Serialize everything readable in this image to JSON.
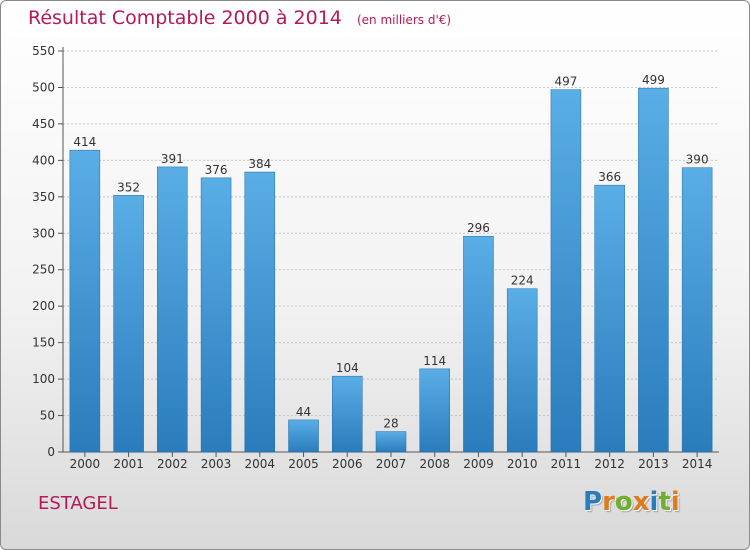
{
  "header": {
    "title": "Résultat Comptable 2000 à 2014",
    "subtitle": "(en milliers d'€)"
  },
  "footer": {
    "commune": "ESTAGEL",
    "brand": "Proxiti"
  },
  "colors": {
    "title": "#b5195a",
    "bar_light": "#5aaee6",
    "bar_dark": "#2a7cbc",
    "brand_letters": [
      "#2a7cbc",
      "#e07a1f",
      "#6fae2e",
      "#e07a1f",
      "#2a7cbc",
      "#6fae2e",
      "#e07a1f"
    ]
  },
  "chart_data": {
    "type": "bar",
    "title": "Résultat Comptable 2000 à 2014",
    "subtitle": "(en milliers d'€)",
    "categories": [
      "2000",
      "2001",
      "2002",
      "2003",
      "2004",
      "2005",
      "2006",
      "2007",
      "2008",
      "2009",
      "2010",
      "2011",
      "2012",
      "2013",
      "2014"
    ],
    "values": [
      414,
      352,
      391,
      376,
      384,
      44,
      104,
      28,
      114,
      296,
      224,
      497,
      366,
      499,
      390
    ],
    "ylim": [
      0,
      550
    ],
    "yticks": [
      0,
      50,
      100,
      150,
      200,
      250,
      300,
      350,
      400,
      450,
      500,
      550
    ],
    "grid": true,
    "data_labels": true
  }
}
